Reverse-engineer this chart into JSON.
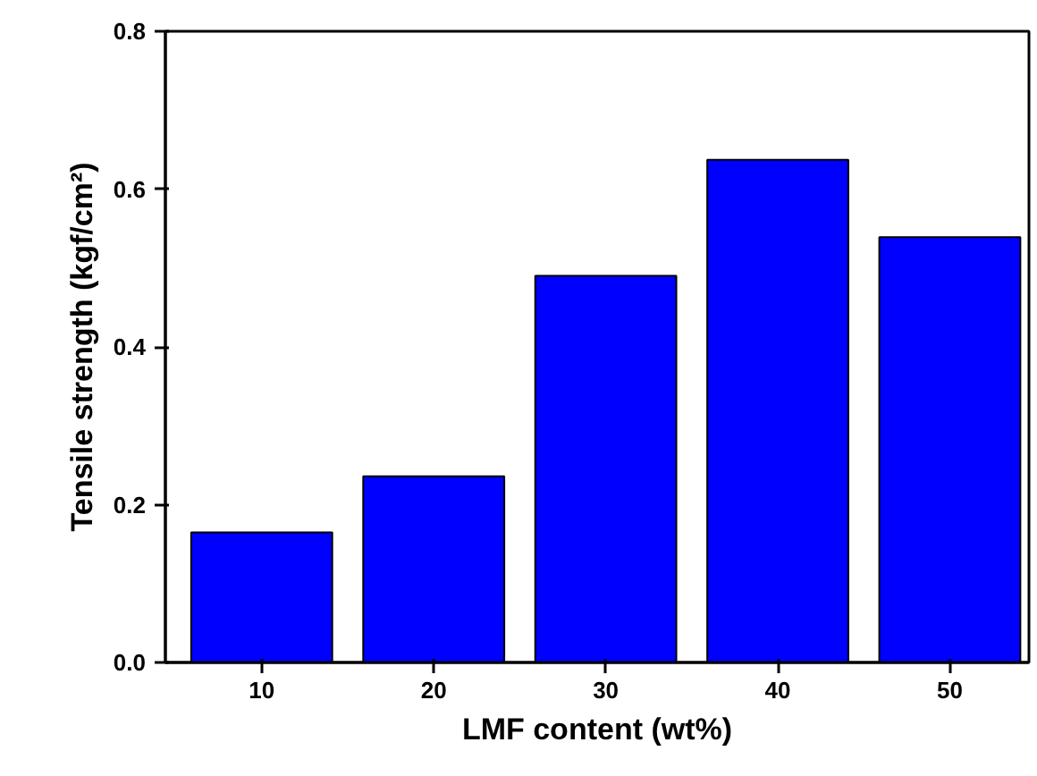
{
  "chart_data": {
    "type": "bar",
    "xlabel": "LMF content (wt%)",
    "ylabel": "Tensile strength (kgf/cm²)",
    "categories": [
      "10",
      "20",
      "30",
      "40",
      "50"
    ],
    "values": [
      0.165,
      0.236,
      0.49,
      0.637,
      0.539
    ],
    "color": "#0000ff",
    "ylim": [
      0,
      0.8
    ],
    "yticks": [
      {
        "value": 0,
        "label": "0.0"
      },
      0.2,
      0.4,
      0.6,
      0.8
    ],
    "grid": false
  }
}
